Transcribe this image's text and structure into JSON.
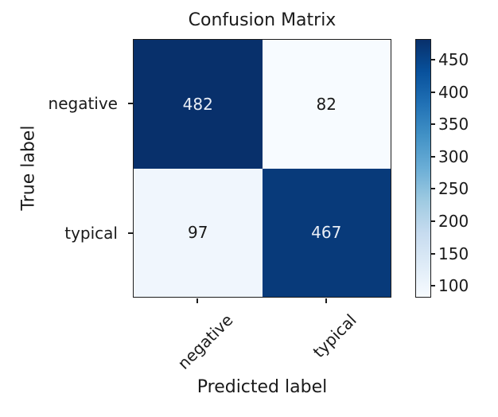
{
  "chart_data": {
    "type": "heatmap",
    "title": "Confusion Matrix",
    "xlabel": "Predicted label",
    "ylabel": "True label",
    "x_categories": [
      "negative",
      "typical"
    ],
    "y_categories": [
      "negative",
      "typical"
    ],
    "matrix": [
      [
        482,
        82
      ],
      [
        97,
        467
      ]
    ],
    "colormap": "Blues",
    "vmin": 82,
    "vmax": 482,
    "colorbar_ticks": [
      450,
      400,
      350,
      300,
      250,
      200,
      150,
      100
    ],
    "cell_colors": [
      [
        "#08306b",
        "#f7fbff"
      ],
      [
        "#f0f6fd",
        "#083a7a"
      ]
    ],
    "cell_text_colors": [
      [
        "#e9eef6",
        "#1a1a1a"
      ],
      [
        "#1a1a1a",
        "#e9eef6"
      ]
    ],
    "colormap_stops": [
      "#f7fbff",
      "#deebf7",
      "#c6dbef",
      "#9ecae1",
      "#6baed6",
      "#4292c6",
      "#2171b5",
      "#08519c",
      "#08306b"
    ],
    "grid": false,
    "legend_position": "colorbar-right"
  }
}
